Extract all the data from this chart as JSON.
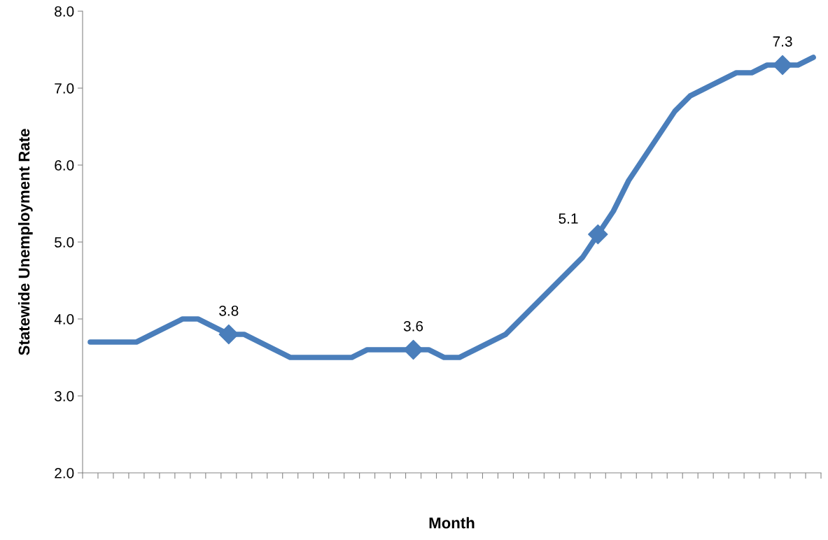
{
  "chart_data": {
    "type": "line",
    "xlabel": "Month",
    "ylabel": "Statewide Unemployment Rate",
    "categories": [
      null,
      null,
      null,
      null,
      null,
      null,
      null,
      null,
      null,
      null,
      null,
      null,
      null,
      null,
      null,
      null,
      null,
      null,
      null,
      null,
      null,
      null,
      null,
      null,
      null,
      null,
      null,
      null,
      null,
      null,
      null,
      null,
      null,
      null,
      null,
      null,
      null,
      null,
      null,
      null,
      null,
      null,
      null,
      null,
      null,
      null,
      null,
      null
    ],
    "series": [
      {
        "color": "#4a7ebb",
        "marker": "none",
        "values": [
          3.7,
          3.7,
          3.7,
          3.7,
          3.8,
          3.9,
          4.0,
          4.0,
          3.9,
          3.8,
          3.8,
          3.7,
          3.6,
          3.5,
          3.5,
          3.5,
          3.5,
          3.5,
          3.6,
          3.6,
          3.6,
          3.6,
          3.6,
          3.5,
          3.5,
          3.6,
          3.7,
          3.8,
          4.0,
          4.2,
          4.4,
          4.6,
          4.8,
          5.1,
          5.4,
          5.8,
          6.1,
          6.4,
          6.7,
          6.9,
          7.0,
          7.1,
          7.2,
          7.2,
          7.3,
          7.3,
          7.3,
          7.4
        ]
      },
      {
        "type": "scatter",
        "color": "#4a7ebb",
        "marker": "diamond",
        "values": [
          null,
          null,
          null,
          null,
          null,
          null,
          null,
          null,
          null,
          3.8,
          null,
          null,
          null,
          null,
          null,
          null,
          null,
          null,
          null,
          null,
          null,
          3.6,
          null,
          null,
          null,
          null,
          null,
          null,
          null,
          null,
          null,
          null,
          null,
          5.1,
          null,
          null,
          null,
          null,
          null,
          null,
          null,
          null,
          null,
          null,
          null,
          7.3,
          null,
          null
        ],
        "value_labels": [
          null,
          null,
          null,
          null,
          null,
          null,
          null,
          null,
          null,
          "3.8",
          null,
          null,
          null,
          null,
          null,
          null,
          null,
          null,
          null,
          null,
          null,
          "3.6",
          null,
          null,
          null,
          null,
          null,
          null,
          null,
          null,
          null,
          null,
          null,
          "5.1",
          null,
          null,
          null,
          null,
          null,
          null,
          null,
          null,
          null,
          null,
          null,
          "7.3",
          null,
          null
        ]
      }
    ],
    "line_style": "solid",
    "ylim": [
      2,
      8
    ],
    "yticks": [
      {
        "value": 2,
        "label": "2.0"
      },
      {
        "value": 3,
        "label": "3.0"
      },
      {
        "value": 4,
        "label": "4.0"
      },
      {
        "value": 5,
        "label": "5.0"
      },
      {
        "value": 6,
        "label": "6.0"
      },
      {
        "value": 7,
        "label": "7.0"
      },
      {
        "value": 8,
        "label": "8.0"
      }
    ],
    "grid": false,
    "legend": false
  }
}
